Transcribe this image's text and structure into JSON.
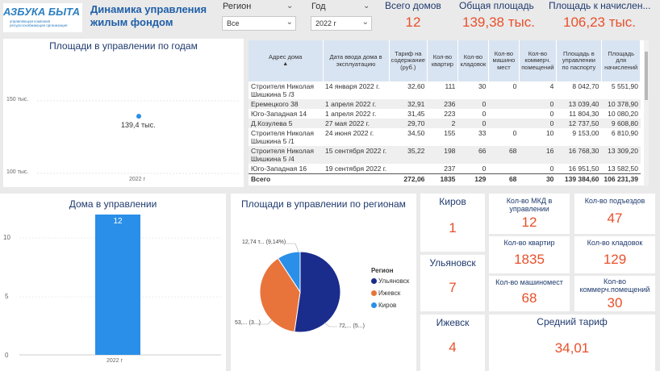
{
  "header": {
    "logo_text": "АЗБУКА БЫТА",
    "logo_sub": "управляющая компания ресурсоснабжающая организация",
    "title": "Динамика управления жилым фондом"
  },
  "filters": {
    "region": {
      "label": "Регион",
      "value": "Все"
    },
    "year": {
      "label": "Год",
      "value": "2022 г"
    }
  },
  "top_kpis": [
    {
      "label": "Всего домов",
      "value": "12"
    },
    {
      "label": "Общая площадь",
      "value": "139,38 тыс."
    },
    {
      "label": "Площадь к начислен...",
      "value": "106,23 тыс."
    }
  ],
  "areas_by_year": {
    "title": "Площади в управлении по годам",
    "y_ticks": [
      "150 тыс.",
      "100 тыс."
    ],
    "x_tick": "2022 г"
  },
  "table": {
    "headers": [
      "Адрес дома",
      "Дата ввода дома в эксплуатацию",
      "Тариф на содержание (руб.)",
      "Кол-во квартир",
      "Кол-во кладовок",
      "Кол-во машино мест",
      "Кол-во коммерч. помещений",
      "Площадь в управлении по паспорту",
      "Площадь для начислений"
    ],
    "rows": [
      [
        "Строителя Николая Шишкина 5 /3",
        "14 января 2022 г.",
        "32,60",
        "111",
        "30",
        "0",
        "4",
        "8 042,70",
        "5 551,90"
      ],
      [
        "Еремецкого 38",
        "1 апреля 2022 г.",
        "32,91",
        "236",
        "0",
        "",
        "0",
        "13 039,40",
        "10 378,90"
      ],
      [
        "Юго-Западная 14",
        "1 апреля 2022 г.",
        "31,45",
        "223",
        "0",
        "",
        "0",
        "11 804,30",
        "10 080,20"
      ],
      [
        "Д.Козулева 5",
        "27 мая 2022 г.",
        "29,70",
        "2",
        "0",
        "",
        "0",
        "12 737,50",
        "9 608,80"
      ],
      [
        "Строителя Николая Шишкина 5 /1",
        "24 июня 2022 г.",
        "34,50",
        "155",
        "33",
        "0",
        "10",
        "9 153,00",
        "6 810,90"
      ],
      [
        "Строителя Николая Шишкина 5 /4",
        "15 сентября 2022 г.",
        "35,22",
        "198",
        "66",
        "68",
        "16",
        "16 768,30",
        "13 309,20"
      ],
      [
        "Юго-Западная 16",
        "19 сентября 2022 г.",
        "",
        "237",
        "0",
        "",
        "0",
        "16 951,50",
        "13 582,50"
      ]
    ],
    "total": [
      "Всего",
      "",
      "272,06",
      "1835",
      "129",
      "68",
      "30",
      "139 384,60",
      "106 231,39"
    ]
  },
  "houses_chart": {
    "title": "Дома в управлении",
    "y_ticks": [
      "10",
      "5",
      "0"
    ],
    "x_tick": "2022 г"
  },
  "chart_data": [
    {
      "type": "scatter",
      "title": "Площади в управлении по годам",
      "x": [
        "2022 г"
      ],
      "values": [
        139.4
      ],
      "data_labels": [
        "139,4 тыс."
      ],
      "ylim": [
        100,
        150
      ],
      "y_unit": "тыс."
    },
    {
      "type": "bar",
      "title": "Дома в управлении",
      "categories": [
        "2022 г"
      ],
      "values": [
        12
      ],
      "data_labels": [
        "12"
      ],
      "ylim": [
        0,
        12
      ]
    },
    {
      "type": "pie",
      "title": "Площади в управлении по регионам",
      "legend_title": "Регион",
      "legend_position": "right",
      "categories": [
        "Ульяновск",
        "Ижевск",
        "Киров"
      ],
      "values": [
        72,
        53,
        12.74
      ],
      "data_labels": [
        "72,... (5...)",
        "53,... (3...)",
        "12,74 т... (9,14%)"
      ],
      "colors": [
        "#1a2c8c",
        "#e8743b",
        "#2a8fe8"
      ]
    }
  ],
  "region_cards": [
    {
      "label": "Киров",
      "value": "1"
    },
    {
      "label": "Ульяновск",
      "value": "7"
    },
    {
      "label": "Ижевск",
      "value": "4"
    }
  ],
  "stat_cards": [
    {
      "label": "Кол-во МКД в управлении",
      "value": "12"
    },
    {
      "label": "Кол-во подъездов",
      "value": "47"
    },
    {
      "label": "Кол-во квартир",
      "value": "1835"
    },
    {
      "label": "Кол-во кладовок",
      "value": "129"
    },
    {
      "label": "Кол-во машиномест",
      "value": "68"
    },
    {
      "label": "Кол-во коммерч.помещений",
      "value": "30"
    },
    {
      "label": "Средний тариф",
      "value": "34,01"
    }
  ],
  "colors": {
    "accent": "#e8502a",
    "title": "#1f3a6e",
    "bar": "#2a8fe8"
  }
}
